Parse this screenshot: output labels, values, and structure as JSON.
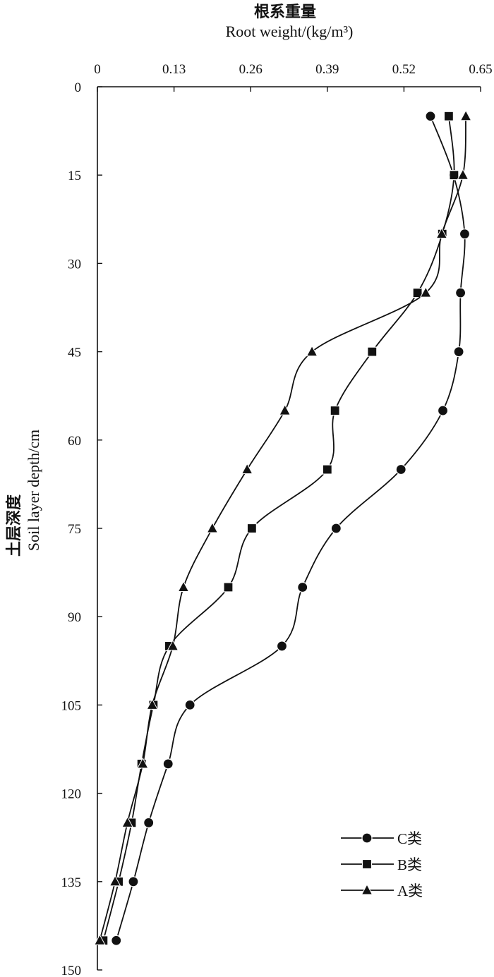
{
  "chart_data": {
    "type": "line",
    "x_title_zh": "根系重量",
    "x_title_en": "Root weight/(kg/m³)",
    "y_title_zh": "土层深度",
    "y_title_en": "Soil layer depth/cm",
    "x_ticks": [
      "0",
      "0.13",
      "0.26",
      "0.39",
      "0.52",
      "0.65"
    ],
    "y_ticks": [
      "0",
      "15",
      "30",
      "45",
      "60",
      "75",
      "90",
      "105",
      "120",
      "135",
      "150"
    ],
    "xlim": [
      0,
      0.65
    ],
    "ylim": [
      0,
      150
    ],
    "y_inverted": true,
    "x_axis_position": "top",
    "grid": false,
    "legend_position": "bottom-right",
    "depth": [
      5,
      15,
      25,
      35,
      45,
      55,
      65,
      75,
      85,
      95,
      105,
      115,
      125,
      135,
      145
    ],
    "series": [
      {
        "name": "C类",
        "marker": "circle",
        "values": [
          0.565,
          0.604,
          0.623,
          0.616,
          0.613,
          0.586,
          0.515,
          0.405,
          0.348,
          0.313,
          0.157,
          0.12,
          0.087,
          0.061,
          0.032
        ]
      },
      {
        "name": "B类",
        "marker": "square",
        "values": [
          0.596,
          0.605,
          0.585,
          0.543,
          0.466,
          0.403,
          0.39,
          0.262,
          0.222,
          0.122,
          0.095,
          0.075,
          0.058,
          0.036,
          0.01
        ]
      },
      {
        "name": "A类",
        "marker": "triangle",
        "values": [
          0.625,
          0.62,
          0.584,
          0.557,
          0.364,
          0.318,
          0.254,
          0.195,
          0.146,
          0.128,
          0.093,
          0.077,
          0.051,
          0.03,
          0.004
        ]
      }
    ]
  }
}
